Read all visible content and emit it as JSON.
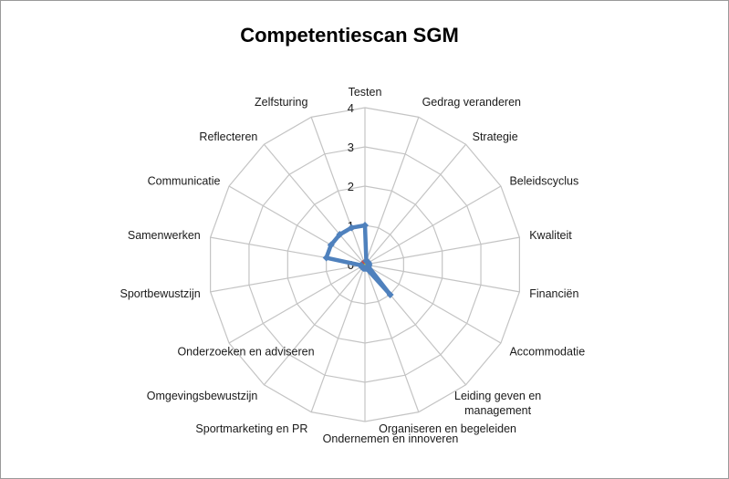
{
  "chart_data": {
    "type": "radar",
    "title": "Competentiescan SGM",
    "categories": [
      "Testen",
      "Gedrag veranderen",
      "Strategie",
      "Beleidscyclus",
      "Kwaliteit",
      "Financiën",
      "Accommodatie",
      "Leiding geven en management",
      "Organiseren en begeleiden",
      "Ondernemen en innoveren",
      "Sportmarketing en PR",
      "Omgevingsbewustzijn",
      "Onderzoeken en adviseren",
      "Sportbewustzijn",
      "Samenwerken",
      "Communicatie",
      "Reflecteren",
      "Zelfsturing"
    ],
    "rlim": [
      0,
      4
    ],
    "ticks": [
      "0",
      "1",
      "2",
      "3",
      "4"
    ],
    "grid": true,
    "legend": "none",
    "series": [
      {
        "values": [
          1,
          0.1,
          0.1,
          0.1,
          0.1,
          0.1,
          0.1,
          1,
          0.1,
          0.1,
          0.1,
          0.1,
          0.1,
          0.1,
          1,
          1,
          1,
          1
        ],
        "color": "#4f81bd"
      },
      {
        "values": [
          0.08,
          0.08,
          0.08,
          0.08,
          0.08,
          0.08,
          0.08,
          0.08,
          0.08,
          0.08,
          0.08,
          0.08,
          0.08,
          0.08,
          0.08,
          0.08,
          0.08,
          0.08
        ],
        "color": "#c0504d"
      },
      {
        "values": [
          0.05,
          0.05,
          0.05,
          0.05,
          0.05,
          0.05,
          0.05,
          0.05,
          0.05,
          0.05,
          0.05,
          0.05,
          0.05,
          0.05,
          0.05,
          0.05,
          0.05,
          0.05
        ],
        "color": "#9bbb59"
      }
    ],
    "colors": {
      "grid": "#c4c4c4",
      "axis": "#c4c4c4",
      "text": "#1a1a1a"
    }
  }
}
